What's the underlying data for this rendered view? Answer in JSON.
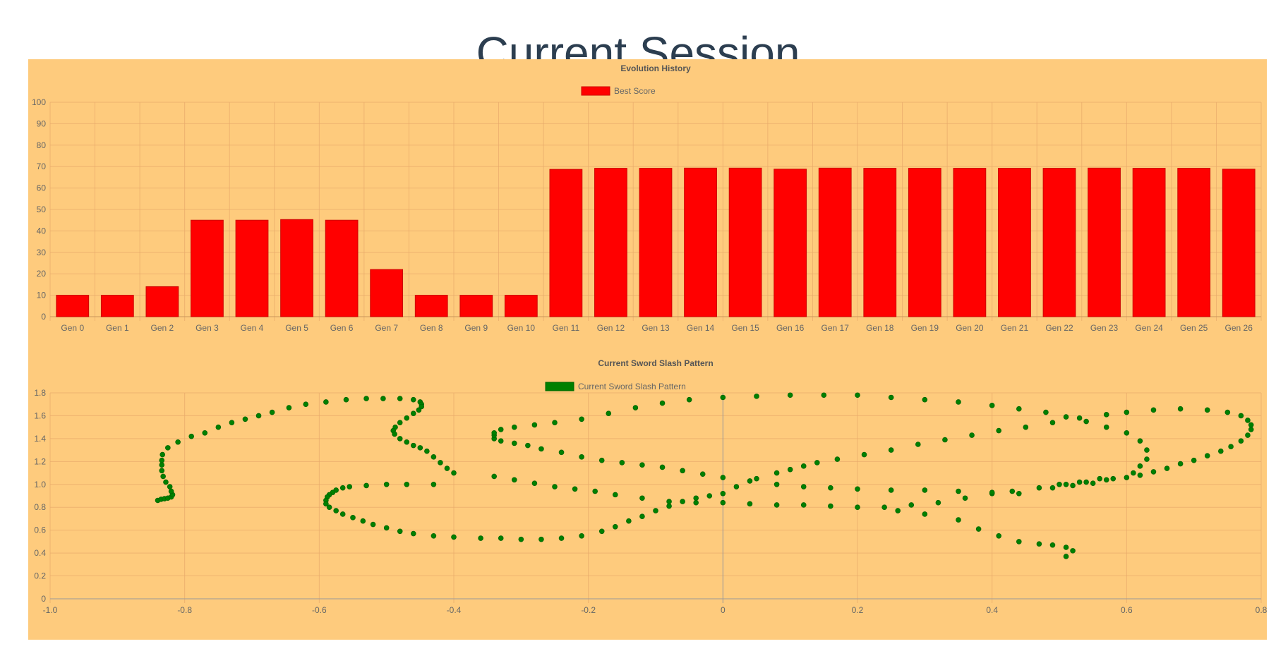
{
  "page": {
    "title": "Current Session"
  },
  "colors": {
    "panel_background": "#fecb7d",
    "bar": "#ff0000",
    "point": "#008000",
    "title_text": "#2c3e50"
  },
  "chart_data": [
    {
      "type": "bar",
      "title": "Evolution History",
      "legend": {
        "position": "top",
        "label": "Best Score"
      },
      "categories": [
        "Gen 0",
        "Gen 1",
        "Gen 2",
        "Gen 3",
        "Gen 4",
        "Gen 5",
        "Gen 6",
        "Gen 7",
        "Gen 8",
        "Gen 9",
        "Gen 10",
        "Gen 11",
        "Gen 12",
        "Gen 13",
        "Gen 14",
        "Gen 15",
        "Gen 16",
        "Gen 17",
        "Gen 18",
        "Gen 19",
        "Gen 20",
        "Gen 21",
        "Gen 22",
        "Gen 23",
        "Gen 24",
        "Gen 25",
        "Gen 26"
      ],
      "series": [
        {
          "name": "Best Score",
          "color": "#ff0000",
          "values": [
            10,
            10,
            14,
            45,
            45,
            45.3,
            45,
            22,
            10,
            10,
            10,
            68.7,
            69.2,
            69.2,
            69.3,
            69.3,
            68.8,
            69.3,
            69.2,
            69.2,
            69.2,
            69.2,
            69.2,
            69.3,
            69.2,
            69.2,
            68.8
          ]
        }
      ],
      "ylim": [
        0,
        100
      ],
      "yticks": [
        0,
        10,
        20,
        30,
        40,
        50,
        60,
        70,
        80,
        90,
        100
      ],
      "grid": true
    },
    {
      "type": "scatter",
      "title": "Current Sword Slash Pattern",
      "legend": {
        "position": "top",
        "label": "Current Sword Slash Pattern"
      },
      "series": [
        {
          "name": "Current Sword Slash Pattern",
          "color": "#008000",
          "points": [
            [
              -0.84,
              0.86
            ],
            [
              -0.835,
              0.87
            ],
            [
              -0.83,
              0.875
            ],
            [
              -0.825,
              0.88
            ],
            [
              -0.82,
              0.89
            ],
            [
              -0.818,
              0.91
            ],
            [
              -0.82,
              0.94
            ],
            [
              -0.822,
              0.98
            ],
            [
              -0.828,
              1.02
            ],
            [
              -0.832,
              1.07
            ],
            [
              -0.834,
              1.12
            ],
            [
              -0.834,
              1.17
            ],
            [
              -0.834,
              1.21
            ],
            [
              -0.833,
              1.26
            ],
            [
              -0.825,
              1.32
            ],
            [
              -0.81,
              1.37
            ],
            [
              -0.79,
              1.42
            ],
            [
              -0.77,
              1.45
            ],
            [
              -0.75,
              1.5
            ],
            [
              -0.73,
              1.54
            ],
            [
              -0.71,
              1.57
            ],
            [
              -0.69,
              1.6
            ],
            [
              -0.67,
              1.63
            ],
            [
              -0.645,
              1.67
            ],
            [
              -0.62,
              1.7
            ],
            [
              -0.59,
              1.72
            ],
            [
              -0.56,
              1.74
            ],
            [
              -0.53,
              1.75
            ],
            [
              -0.505,
              1.75
            ],
            [
              -0.48,
              1.75
            ],
            [
              -0.46,
              1.74
            ],
            [
              -0.45,
              1.72
            ],
            [
              -0.448,
              1.7
            ],
            [
              -0.448,
              1.68
            ],
            [
              -0.452,
              1.65
            ],
            [
              -0.46,
              1.62
            ],
            [
              -0.47,
              1.58
            ],
            [
              -0.48,
              1.54
            ],
            [
              -0.487,
              1.5
            ],
            [
              -0.49,
              1.47
            ],
            [
              -0.488,
              1.44
            ],
            [
              -0.48,
              1.4
            ],
            [
              -0.47,
              1.37
            ],
            [
              -0.46,
              1.34
            ],
            [
              -0.45,
              1.32
            ],
            [
              -0.44,
              1.29
            ],
            [
              -0.43,
              1.24
            ],
            [
              -0.42,
              1.19
            ],
            [
              -0.41,
              1.14
            ],
            [
              -0.4,
              1.1
            ],
            [
              -0.43,
              1.0
            ],
            [
              -0.47,
              1.0
            ],
            [
              -0.5,
              1.0
            ],
            [
              -0.53,
              0.99
            ],
            [
              -0.555,
              0.98
            ],
            [
              -0.565,
              0.97
            ],
            [
              -0.575,
              0.95
            ],
            [
              -0.58,
              0.93
            ],
            [
              -0.585,
              0.91
            ],
            [
              -0.588,
              0.89
            ],
            [
              -0.59,
              0.86
            ],
            [
              -0.59,
              0.83
            ],
            [
              -0.585,
              0.8
            ],
            [
              -0.575,
              0.77
            ],
            [
              -0.565,
              0.74
            ],
            [
              -0.55,
              0.71
            ],
            [
              -0.535,
              0.68
            ],
            [
              -0.52,
              0.65
            ],
            [
              -0.5,
              0.62
            ],
            [
              -0.48,
              0.59
            ],
            [
              -0.46,
              0.57
            ],
            [
              -0.43,
              0.55
            ],
            [
              -0.4,
              0.54
            ],
            [
              -0.36,
              0.53
            ],
            [
              -0.33,
              0.53
            ],
            [
              -0.3,
              0.52
            ],
            [
              -0.27,
              0.52
            ],
            [
              -0.24,
              0.53
            ],
            [
              -0.21,
              0.55
            ],
            [
              -0.18,
              0.59
            ],
            [
              -0.16,
              0.63
            ],
            [
              -0.14,
              0.68
            ],
            [
              -0.12,
              0.72
            ],
            [
              -0.1,
              0.77
            ],
            [
              -0.08,
              0.81
            ],
            [
              -0.06,
              0.85
            ],
            [
              -0.04,
              0.88
            ],
            [
              -0.02,
              0.9
            ],
            [
              0.0,
              0.92
            ],
            [
              0.02,
              0.98
            ],
            [
              0.05,
              1.05
            ],
            [
              0.08,
              1.1
            ],
            [
              0.1,
              1.13
            ],
            [
              0.12,
              1.16
            ],
            [
              0.14,
              1.19
            ],
            [
              0.17,
              1.22
            ],
            [
              0.21,
              1.26
            ],
            [
              0.25,
              1.3
            ],
            [
              0.29,
              1.35
            ],
            [
              0.33,
              1.39
            ],
            [
              0.37,
              1.43
            ],
            [
              0.41,
              1.47
            ],
            [
              0.45,
              1.5
            ],
            [
              0.49,
              1.54
            ],
            [
              0.53,
              1.58
            ],
            [
              0.57,
              1.61
            ],
            [
              0.6,
              1.63
            ],
            [
              0.64,
              1.65
            ],
            [
              0.68,
              1.66
            ],
            [
              0.72,
              1.65
            ],
            [
              0.75,
              1.63
            ],
            [
              0.77,
              1.6
            ],
            [
              0.78,
              1.56
            ],
            [
              0.785,
              1.52
            ],
            [
              0.785,
              1.48
            ],
            [
              0.78,
              1.43
            ],
            [
              0.77,
              1.38
            ],
            [
              0.755,
              1.33
            ],
            [
              0.74,
              1.29
            ],
            [
              0.72,
              1.25
            ],
            [
              0.7,
              1.21
            ],
            [
              0.68,
              1.18
            ],
            [
              0.66,
              1.14
            ],
            [
              0.64,
              1.11
            ],
            [
              0.62,
              1.08
            ],
            [
              0.6,
              1.06
            ],
            [
              0.57,
              1.04
            ],
            [
              0.54,
              1.02
            ],
            [
              0.51,
              1.0
            ],
            [
              0.47,
              0.97
            ],
            [
              0.43,
              0.94
            ],
            [
              0.4,
              0.92
            ],
            [
              0.36,
              0.88
            ],
            [
              0.32,
              0.84
            ],
            [
              0.28,
              0.82
            ],
            [
              0.24,
              0.8
            ],
            [
              0.2,
              0.8
            ],
            [
              0.16,
              0.81
            ],
            [
              0.12,
              0.82
            ],
            [
              0.08,
              0.82
            ],
            [
              0.04,
              0.83
            ],
            [
              0.0,
              0.84
            ],
            [
              -0.04,
              0.84
            ],
            [
              -0.08,
              0.85
            ],
            [
              -0.12,
              0.88
            ],
            [
              -0.16,
              0.91
            ],
            [
              -0.19,
              0.94
            ],
            [
              -0.22,
              0.96
            ],
            [
              -0.25,
              0.98
            ],
            [
              -0.28,
              1.01
            ],
            [
              -0.31,
              1.04
            ],
            [
              -0.34,
              1.07
            ],
            [
              -0.34,
              1.4
            ],
            [
              -0.34,
              1.43
            ],
            [
              -0.34,
              1.45
            ],
            [
              -0.33,
              1.48
            ],
            [
              -0.31,
              1.5
            ],
            [
              -0.28,
              1.52
            ],
            [
              -0.25,
              1.54
            ],
            [
              -0.21,
              1.57
            ],
            [
              -0.17,
              1.62
            ],
            [
              -0.13,
              1.67
            ],
            [
              -0.09,
              1.71
            ],
            [
              -0.05,
              1.74
            ],
            [
              0.0,
              1.76
            ],
            [
              0.05,
              1.77
            ],
            [
              0.1,
              1.78
            ],
            [
              0.15,
              1.78
            ],
            [
              0.2,
              1.78
            ],
            [
              0.25,
              1.76
            ],
            [
              0.3,
              1.74
            ],
            [
              0.35,
              1.72
            ],
            [
              0.4,
              1.69
            ],
            [
              0.44,
              1.66
            ],
            [
              0.48,
              1.63
            ],
            [
              0.51,
              1.59
            ],
            [
              0.54,
              1.55
            ],
            [
              0.57,
              1.5
            ],
            [
              0.6,
              1.45
            ],
            [
              0.62,
              1.38
            ],
            [
              0.63,
              1.3
            ],
            [
              0.63,
              1.22
            ],
            [
              0.62,
              1.16
            ],
            [
              0.61,
              1.1
            ],
            [
              0.58,
              1.05
            ],
            [
              0.55,
              1.01
            ],
            [
              0.52,
              0.99
            ],
            [
              -0.33,
              1.38
            ],
            [
              -0.31,
              1.36
            ],
            [
              -0.29,
              1.34
            ],
            [
              -0.27,
              1.31
            ],
            [
              -0.24,
              1.28
            ],
            [
              -0.21,
              1.24
            ],
            [
              -0.18,
              1.21
            ],
            [
              -0.15,
              1.19
            ],
            [
              -0.12,
              1.17
            ],
            [
              -0.09,
              1.15
            ],
            [
              -0.06,
              1.12
            ],
            [
              -0.03,
              1.09
            ],
            [
              0.0,
              1.06
            ],
            [
              0.04,
              1.03
            ],
            [
              0.08,
              1.0
            ],
            [
              0.12,
              0.98
            ],
            [
              0.16,
              0.97
            ],
            [
              0.2,
              0.96
            ],
            [
              0.25,
              0.95
            ],
            [
              0.3,
              0.95
            ],
            [
              0.35,
              0.94
            ],
            [
              0.4,
              0.93
            ],
            [
              0.44,
              0.92
            ],
            [
              0.49,
              0.97
            ],
            [
              0.5,
              1.0
            ],
            [
              0.53,
              1.02
            ],
            [
              0.56,
              1.05
            ],
            [
              0.26,
              0.77
            ],
            [
              0.3,
              0.74
            ],
            [
              0.35,
              0.69
            ],
            [
              0.38,
              0.61
            ],
            [
              0.41,
              0.55
            ],
            [
              0.44,
              0.5
            ],
            [
              0.47,
              0.48
            ],
            [
              0.49,
              0.47
            ],
            [
              0.51,
              0.45
            ],
            [
              0.52,
              0.42
            ],
            [
              0.51,
              0.37
            ]
          ]
        }
      ],
      "xlim": [
        -1.0,
        0.8
      ],
      "ylim": [
        0,
        1.8
      ],
      "xticks": [
        "-1.0",
        "-0.8",
        "-0.6",
        "-0.4",
        "-0.2",
        "0",
        "0.2",
        "0.4",
        "0.6",
        "0.8"
      ],
      "yticks": [
        "0",
        "0.2",
        "0.4",
        "0.6",
        "0.8",
        "1.0",
        "1.2",
        "1.4",
        "1.6",
        "1.8"
      ],
      "grid": true
    }
  ]
}
